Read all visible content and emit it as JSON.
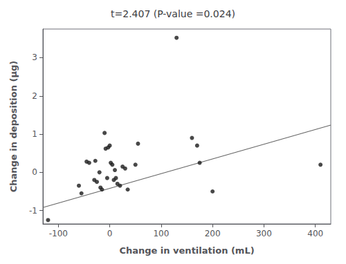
{
  "chart_data": {
    "type": "scatter",
    "title": "t=2.407 (P-value =0.024)",
    "xlabel": "Change in ventilation (mL)",
    "ylabel": "Change in deposition (μg)",
    "xlim": [
      -130,
      430
    ],
    "ylim": [
      -1.35,
      3.75
    ],
    "xticks": [
      -100,
      0,
      100,
      200,
      300,
      400
    ],
    "yticks": [
      -1,
      0,
      1,
      2,
      3
    ],
    "grid": false,
    "series": [
      {
        "type": "scatter",
        "color": "#1a1a1a",
        "x": [
          -120,
          -60,
          -55,
          -45,
          -40,
          -30,
          -28,
          -25,
          -20,
          -18,
          -15,
          -10,
          -8,
          -5,
          -3,
          0,
          2,
          5,
          8,
          10,
          12,
          15,
          20,
          25,
          30,
          35,
          50,
          55,
          130,
          160,
          170,
          175,
          200,
          410
        ],
        "values": [
          -1.25,
          -0.35,
          -0.55,
          0.28,
          0.25,
          -0.2,
          0.3,
          -0.25,
          0.0,
          -0.4,
          -0.45,
          1.03,
          0.62,
          -0.15,
          0.65,
          0.7,
          0.25,
          0.2,
          -0.2,
          0.06,
          -0.15,
          -0.3,
          -0.35,
          0.15,
          0.1,
          -0.45,
          0.2,
          0.75,
          3.52,
          0.9,
          0.7,
          0.25,
          -0.5,
          0.2
        ]
      },
      {
        "type": "line",
        "color": "#666666",
        "x": [
          -130,
          430
        ],
        "values": [
          -0.9205,
          1.2355
        ]
      }
    ]
  }
}
